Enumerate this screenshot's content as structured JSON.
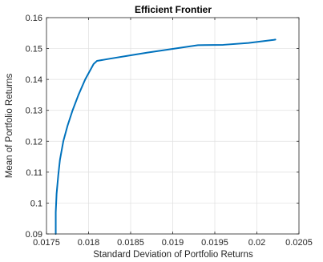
{
  "chart_data": {
    "type": "line",
    "title": "Efficient Frontier",
    "xlabel": "Standard Deviation of Portfolio Returns",
    "ylabel": "Mean of Portfolio Returns",
    "xlim": [
      0.0175,
      0.0205
    ],
    "ylim": [
      0.09,
      0.16
    ],
    "xticks": [
      0.0175,
      0.018,
      0.0185,
      0.019,
      0.0195,
      0.02,
      0.0205
    ],
    "xtick_labels": [
      "0.0175",
      "0.018",
      "0.0185",
      "0.019",
      "0.0195",
      "0.02",
      "0.0205"
    ],
    "yticks": [
      0.09,
      0.1,
      0.11,
      0.12,
      0.13,
      0.14,
      0.15,
      0.16
    ],
    "ytick_labels": [
      "0.09",
      "0.1",
      "0.11",
      "0.12",
      "0.13",
      "0.14",
      "0.15",
      "0.16"
    ],
    "grid": true,
    "line_color": "#0072BD",
    "series": [
      {
        "x": [
          0.01761,
          0.01761,
          0.01762,
          0.01764,
          0.01766,
          0.0177,
          0.01775,
          0.01781,
          0.01788,
          0.01796,
          0.01801,
          0.01806,
          0.0181,
          0.01825,
          0.01845,
          0.0187,
          0.019,
          0.0193,
          0.0196,
          0.0199,
          0.0202,
          0.02022
        ],
        "y": [
          0.09,
          0.097,
          0.103,
          0.109,
          0.114,
          0.12,
          0.125,
          0.13,
          0.135,
          0.14,
          0.1425,
          0.145,
          0.146,
          0.1467,
          0.1476,
          0.1487,
          0.1499,
          0.1511,
          0.1512,
          0.1518,
          0.1528,
          0.1529
        ]
      }
    ]
  }
}
